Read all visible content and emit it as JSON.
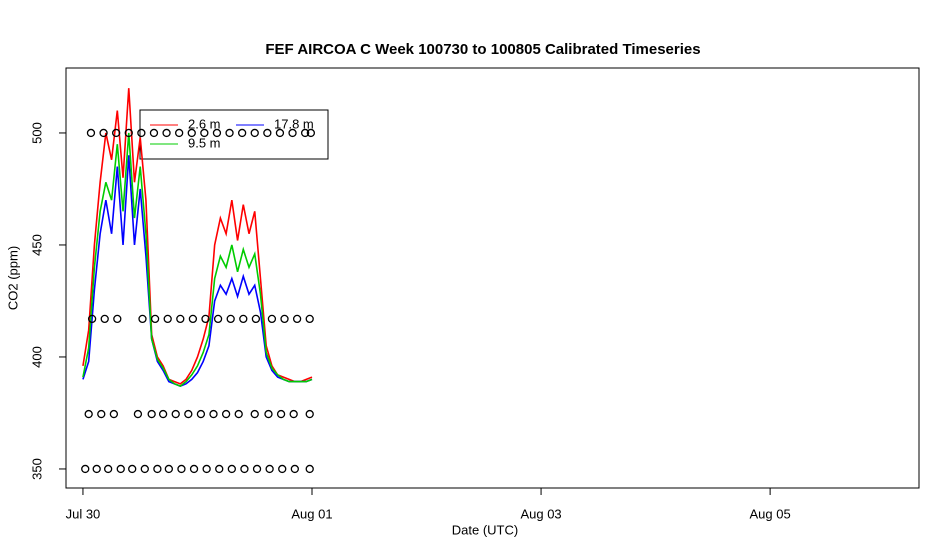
{
  "chart_data": {
    "type": "line",
    "title": "FEF AIRCOA C  Week 100730 to 100805  Calibrated Timeseries",
    "xlabel": "Date (UTC)",
    "ylabel": "CO2 (ppm)",
    "xlim": [
      -0.148,
      7.3
    ],
    "ylim": [
      341.5,
      529
    ],
    "xticks": [
      {
        "value": 0,
        "label": "Jul 30"
      },
      {
        "value": 2,
        "label": "Aug 01"
      },
      {
        "value": 4,
        "label": "Aug 03"
      },
      {
        "value": 6,
        "label": "Aug 05"
      }
    ],
    "yticks": [
      350,
      400,
      450,
      500
    ],
    "x": [
      0,
      0.05,
      0.1,
      0.15,
      0.2,
      0.25,
      0.3,
      0.35,
      0.4,
      0.45,
      0.5,
      0.55,
      0.6,
      0.65,
      0.7,
      0.75,
      0.8,
      0.85,
      0.9,
      0.95,
      1,
      1.05,
      1.1,
      1.15,
      1.2,
      1.25,
      1.3,
      1.35,
      1.4,
      1.45,
      1.5,
      1.55,
      1.6,
      1.65,
      1.7,
      1.75,
      1.8,
      1.85,
      1.9,
      1.95,
      2
    ],
    "series": [
      {
        "name": "2.6 m",
        "color": "#ff0000",
        "values": [
          396,
          412,
          450,
          478,
          500,
          488,
          510,
          480,
          520,
          478,
          498,
          470,
          410,
          400,
          396,
          390,
          389,
          388,
          390,
          394,
          400,
          408,
          418,
          450,
          462,
          455,
          470,
          452,
          468,
          455,
          465,
          435,
          405,
          396,
          392,
          391,
          390,
          389,
          389,
          390,
          391
        ]
      },
      {
        "name": "17.8 m",
        "color": "#0000ff",
        "values": [
          390,
          398,
          430,
          455,
          470,
          455,
          485,
          450,
          490,
          450,
          475,
          445,
          408,
          398,
          394,
          389,
          388,
          387,
          388,
          390,
          393,
          398,
          405,
          425,
          432,
          428,
          435,
          427,
          436,
          428,
          432,
          420,
          400,
          394,
          391,
          390,
          389,
          389,
          389,
          389,
          390
        ]
      },
      {
        "name": "9.5 m",
        "color": "#00cc00",
        "values": [
          391,
          404,
          440,
          465,
          478,
          470,
          495,
          465,
          500,
          462,
          485,
          455,
          408,
          399,
          395,
          390,
          388,
          387,
          389,
          392,
          396,
          402,
          410,
          435,
          445,
          440,
          450,
          438,
          448,
          440,
          446,
          428,
          402,
          395,
          392,
          390,
          389,
          389,
          389,
          389,
          390
        ]
      }
    ],
    "points": {
      "x": [
        0.02,
        0.12,
        0.22,
        0.33,
        0.43,
        0.54,
        0.65,
        0.75,
        0.86,
        0.97,
        1.08,
        1.19,
        1.3,
        1.41,
        1.52,
        1.63,
        1.74,
        1.85,
        1.98,
        0.05,
        0.16,
        0.27,
        0.48,
        0.6,
        0.7,
        0.81,
        0.92,
        1.03,
        1.14,
        1.25,
        1.36,
        1.5,
        1.62,
        1.73,
        1.84,
        1.98,
        0.08,
        0.19,
        0.3,
        0.52,
        0.63,
        0.74,
        0.85,
        0.96,
        1.07,
        1.18,
        1.29,
        1.4,
        1.51,
        1.65,
        1.76,
        1.87,
        1.98,
        0.07,
        0.18,
        0.29,
        0.4,
        0.51,
        0.62,
        0.73,
        0.84,
        0.95,
        1.06,
        1.17,
        1.28,
        1.39,
        1.5,
        1.61,
        1.72,
        1.83,
        1.94,
        1.99
      ],
      "values": [
        350,
        350,
        350,
        350,
        350,
        350,
        350,
        350,
        350,
        350,
        350,
        350,
        350,
        350,
        350,
        350,
        350,
        350,
        350,
        374.5,
        374.5,
        374.5,
        374.5,
        374.5,
        374.5,
        374.5,
        374.5,
        374.5,
        374.5,
        374.5,
        374.5,
        374.5,
        374.5,
        374.5,
        374.5,
        374.5,
        417,
        417,
        417,
        417,
        417,
        417,
        417,
        417,
        417,
        417,
        417,
        417,
        417,
        417,
        417,
        417,
        417,
        500,
        500,
        500,
        500,
        500,
        500,
        500,
        500,
        500,
        500,
        500,
        500,
        500,
        500,
        500,
        500,
        500,
        500,
        500
      ]
    }
  }
}
